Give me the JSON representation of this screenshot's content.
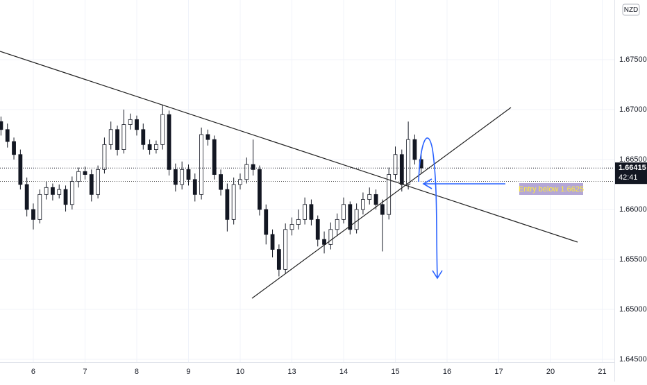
{
  "chart_data": {
    "type": "candlestick",
    "currency": "NZD",
    "last_price": 1.66415,
    "countdown": "42:41",
    "annotation": "Entry below 1.6625",
    "xlim": [
      -0.644,
      11.235
    ],
    "ylim": [
      1.64472,
      1.68097
    ],
    "grid": true,
    "up_color": "#ffffff",
    "down_color": "#131722",
    "xticks": [
      {
        "value": 0,
        "label": "6"
      },
      {
        "value": 1,
        "label": "7"
      },
      {
        "value": 2,
        "label": "8"
      },
      {
        "value": 3,
        "label": "9"
      },
      {
        "value": 4,
        "label": "10"
      },
      {
        "value": 5,
        "label": "13"
      },
      {
        "value": 6,
        "label": "14"
      },
      {
        "value": 7,
        "label": "15"
      },
      {
        "value": 8,
        "label": "16"
      },
      {
        "value": 9,
        "label": "17"
      },
      {
        "value": 10,
        "label": "20"
      },
      {
        "value": 11,
        "label": "21"
      }
    ],
    "yticks": [
      {
        "value": 1.645,
        "label": "1.64500"
      },
      {
        "value": 1.65,
        "label": "1.65000"
      },
      {
        "value": 1.655,
        "label": "1.65500"
      },
      {
        "value": 1.66,
        "label": "1.66000"
      },
      {
        "value": 1.665,
        "label": "1.66500"
      },
      {
        "value": 1.67,
        "label": "1.67000"
      },
      {
        "value": 1.675,
        "label": "1.67500"
      }
    ],
    "x": [
      -0.625,
      -0.5,
      -0.375,
      -0.25,
      -0.125,
      0,
      0.125,
      0.25,
      0.375,
      0.5,
      0.625,
      0.75,
      0.875,
      1,
      1.125,
      1.25,
      1.375,
      1.5,
      1.625,
      1.75,
      1.875,
      2,
      2.125,
      2.25,
      2.375,
      2.5,
      2.625,
      2.75,
      2.875,
      3,
      3.125,
      3.25,
      3.375,
      3.5,
      3.625,
      3.75,
      3.875,
      4,
      4.125,
      4.25,
      4.375,
      4.5,
      4.625,
      4.75,
      4.875,
      5,
      5.125,
      5.25,
      5.375,
      5.5,
      5.625,
      5.75,
      5.875,
      6,
      6.125,
      6.25,
      6.375,
      6.5,
      6.625,
      6.75,
      6.875,
      7,
      7.125,
      7.25,
      7.375,
      7.5
    ],
    "open": [
      1.6688,
      1.668,
      1.6668,
      1.6655,
      1.6625,
      1.66,
      1.659,
      1.6615,
      1.6622,
      1.6615,
      1.662,
      1.6605,
      1.6628,
      1.6638,
      1.6635,
      1.6615,
      1.664,
      1.6665,
      1.668,
      1.666,
      1.6685,
      1.669,
      1.668,
      1.6665,
      1.666,
      1.6665,
      1.6695,
      1.664,
      1.6625,
      1.664,
      1.663,
      1.6615,
      1.6675,
      1.667,
      1.6635,
      1.662,
      1.659,
      1.6625,
      1.663,
      1.6645,
      1.664,
      1.66,
      1.6575,
      1.656,
      1.654,
      1.658,
      1.6585,
      1.659,
      1.6605,
      1.659,
      1.657,
      1.6565,
      1.658,
      1.659,
      1.6605,
      1.658,
      1.66,
      1.661,
      1.6615,
      1.6605,
      1.6595,
      1.6635,
      1.6655,
      1.6625,
      1.667,
      1.665
    ],
    "high": [
      1.6693,
      1.6686,
      1.6672,
      1.666,
      1.6632,
      1.6606,
      1.662,
      1.6628,
      1.6626,
      1.6625,
      1.6624,
      1.6633,
      1.6642,
      1.6643,
      1.664,
      1.6644,
      1.6672,
      1.6688,
      1.6684,
      1.67,
      1.6696,
      1.6694,
      1.6686,
      1.667,
      1.6669,
      1.6705,
      1.6699,
      1.6646,
      1.6648,
      1.6645,
      1.6636,
      1.6682,
      1.668,
      1.6674,
      1.664,
      1.6626,
      1.6632,
      1.6636,
      1.6652,
      1.667,
      1.6644,
      1.6605,
      1.658,
      1.6565,
      1.6586,
      1.6592,
      1.66,
      1.6612,
      1.661,
      1.6594,
      1.6578,
      1.6587,
      1.6596,
      1.6612,
      1.6608,
      1.6606,
      1.6617,
      1.6622,
      1.662,
      1.661,
      1.6642,
      1.6663,
      1.666,
      1.6688,
      1.6675,
      1.6655
    ],
    "low": [
      1.6674,
      1.6662,
      1.665,
      1.662,
      1.6593,
      1.658,
      1.6586,
      1.661,
      1.6609,
      1.6611,
      1.6598,
      1.66,
      1.6622,
      1.663,
      1.6608,
      1.6611,
      1.6636,
      1.666,
      1.6654,
      1.6656,
      1.668,
      1.6674,
      1.666,
      1.6655,
      1.6656,
      1.666,
      1.6634,
      1.6618,
      1.662,
      1.6624,
      1.6608,
      1.661,
      1.6664,
      1.663,
      1.6614,
      1.6578,
      1.6585,
      1.662,
      1.6626,
      1.6634,
      1.6594,
      1.6565,
      1.6552,
      1.6533,
      1.6536,
      1.6574,
      1.658,
      1.6585,
      1.6584,
      1.6563,
      1.6556,
      1.656,
      1.6574,
      1.6586,
      1.6575,
      1.6576,
      1.6595,
      1.6605,
      1.66,
      1.6558,
      1.659,
      1.663,
      1.6618,
      1.662,
      1.6645,
      1.6636
    ],
    "close": [
      1.668,
      1.6668,
      1.6655,
      1.6625,
      1.66,
      1.659,
      1.6615,
      1.6622,
      1.6615,
      1.662,
      1.6605,
      1.6628,
      1.6638,
      1.6635,
      1.6615,
      1.664,
      1.6665,
      1.668,
      1.666,
      1.6685,
      1.669,
      1.668,
      1.6665,
      1.666,
      1.6665,
      1.6695,
      1.664,
      1.6625,
      1.664,
      1.663,
      1.6615,
      1.6675,
      1.667,
      1.6635,
      1.662,
      1.659,
      1.6625,
      1.663,
      1.6645,
      1.664,
      1.66,
      1.6575,
      1.656,
      1.654,
      1.658,
      1.6585,
      1.659,
      1.6605,
      1.659,
      1.657,
      1.6565,
      1.658,
      1.659,
      1.6605,
      1.658,
      1.66,
      1.661,
      1.6615,
      1.6605,
      1.6595,
      1.6635,
      1.6655,
      1.6625,
      1.667,
      1.665,
      1.66415
    ]
  }
}
